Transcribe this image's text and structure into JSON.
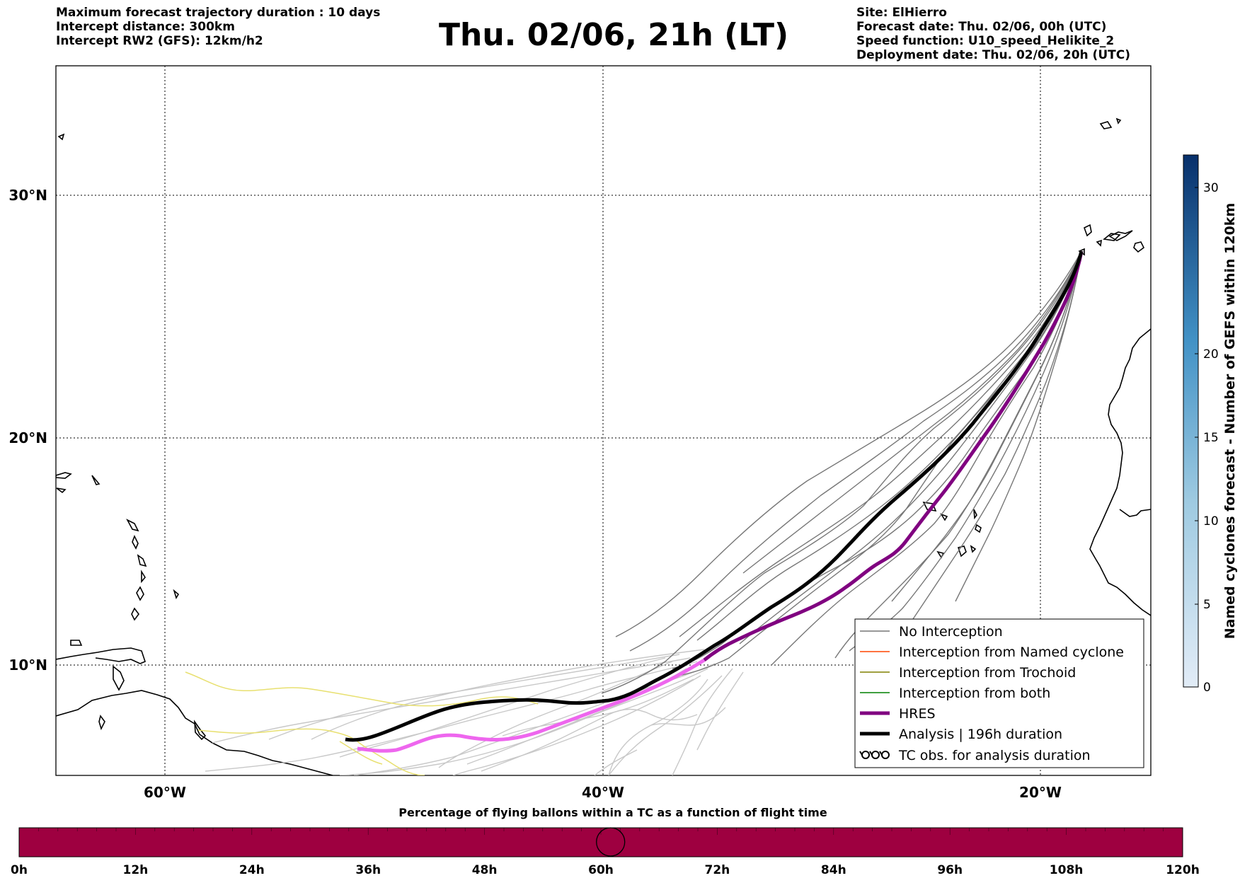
{
  "header": {
    "left_lines": [
      "Maximum forecast trajectory duration : 10 days",
      "Intercept distance: 300km",
      "Intercept RW2 (GFS):  12km/h2"
    ],
    "title": "Thu. 02/06, 21h (LT)",
    "right_lines": [
      "Site: ElHierro",
      "Forecast date: Thu. 02/06, 00h (UTC)",
      "Speed function: U10_speed_Helikite_2",
      "Deployment date: Thu. 02/06, 20h (UTC)"
    ]
  },
  "map": {
    "lon_labels": [
      "60°W",
      "40°W",
      "20°W"
    ],
    "lat_labels": [
      "30°N",
      "20°N",
      "10°N"
    ],
    "colors": {
      "no_interception": "#777777",
      "named_cyclone": "#ff4500",
      "trochoid": "#808000",
      "both": "#008000",
      "hres": "#800080",
      "hres_future": "#ee66ee",
      "analysis": "#000000",
      "ensemble_future": "#c8c8c8",
      "yellow_track": "#e8e070"
    }
  },
  "legend": {
    "items": [
      {
        "label": "No Interception",
        "style": "thin",
        "color": "#777777"
      },
      {
        "label": "Interception from Named cyclone",
        "style": "thin",
        "color": "#ff4500"
      },
      {
        "label": "Interception from Trochoid",
        "style": "thin",
        "color": "#808000"
      },
      {
        "label": "Interception from both",
        "style": "thin",
        "color": "#008000"
      },
      {
        "label": "HRES",
        "style": "thick",
        "color": "#800080"
      },
      {
        "label": "Analysis | 196h duration",
        "style": "thick",
        "color": "#000000"
      },
      {
        "label": "TC obs. for analysis duration",
        "style": "symbol",
        "color": "#000000"
      }
    ]
  },
  "colorbar": {
    "label": "Named cyclones forecast - Number of GEFS within 120km",
    "ticks": [
      "0",
      "5",
      "10",
      "15",
      "20",
      "30"
    ]
  },
  "timebar": {
    "title": "Percentage of flying ballons within a TC as a function of flight time",
    "ticks": [
      "0h",
      "12h",
      "24h",
      "36h",
      "48h",
      "60h",
      "72h",
      "84h",
      "96h",
      "108h",
      "120h"
    ],
    "current_hours": 61,
    "fill_color": "#9e0040"
  }
}
